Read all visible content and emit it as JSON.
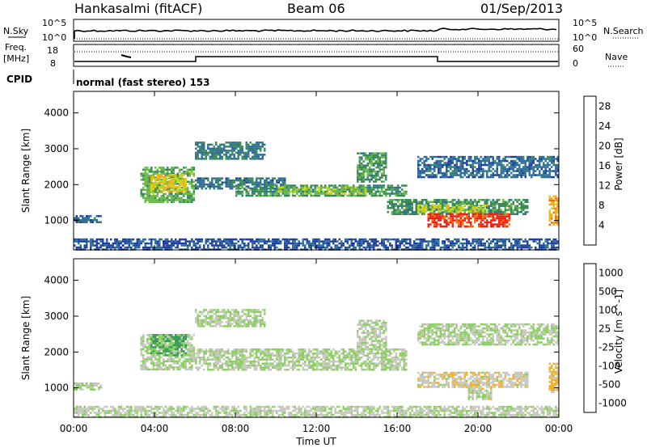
{
  "header": {
    "station": "Hankasalmi (fitACF)",
    "beam": "Beam 06",
    "date": "01/Sep/2013"
  },
  "status_panels": {
    "nsky_label": "N.Sky",
    "nsky_axis_top": "10^5",
    "nsky_axis_bottom": "10^0",
    "nsearch_axis_top": "10^5",
    "nsearch_axis_bottom": "10^0",
    "nsearch_label": "N.Search",
    "freq_label_1": "Freq.",
    "freq_label_2": "[MHz]",
    "freq_tick_high": "18",
    "freq_tick_low": "8",
    "nave_tick_high": "60",
    "nave_tick_low": "0",
    "nave_label": "Nave",
    "cpid_label": "CPID",
    "cpid_text": "normal (fast stereo) 153"
  },
  "chart_data": [
    {
      "type": "heatmap",
      "title": "",
      "ylabel": "Slant Range [km]",
      "ylim": [
        180,
        4600
      ],
      "yticks": [
        "1000",
        "2000",
        "3000",
        "4000"
      ],
      "xlim": [
        0,
        24
      ],
      "colorbar": {
        "label": "Power [dB]",
        "range": [
          0,
          30
        ],
        "ticks": [
          "4",
          "8",
          "12",
          "16",
          "20",
          "24",
          "28"
        ],
        "colors": [
          "#0000ee",
          "#1c3fa0",
          "#2e6e9a",
          "#3a8a5a",
          "#6ab84a",
          "#c8d820",
          "#f0b018",
          "#f07010",
          "#ee2010"
        ]
      },
      "echo_regions": [
        {
          "x": [
            0.0,
            1.4
          ],
          "y": [
            950,
            1150
          ],
          "value": 8
        },
        {
          "x": [
            0.0,
            24.0
          ],
          "y": [
            200,
            500
          ],
          "value": 6
        },
        {
          "x": [
            3.3,
            6.0
          ],
          "y": [
            1500,
            2500
          ],
          "value": 14
        },
        {
          "x": [
            3.8,
            5.6
          ],
          "y": [
            1800,
            2300
          ],
          "value": 20
        },
        {
          "x": [
            6.0,
            9.5
          ],
          "y": [
            2700,
            3200
          ],
          "value": 10
        },
        {
          "x": [
            6.0,
            10.5
          ],
          "y": [
            1900,
            2200
          ],
          "value": 9
        },
        {
          "x": [
            8.0,
            16.5
          ],
          "y": [
            1700,
            2000
          ],
          "value": 12
        },
        {
          "x": [
            10.0,
            14.5
          ],
          "y": [
            1750,
            1950
          ],
          "value": 16
        },
        {
          "x": [
            14.0,
            15.5
          ],
          "y": [
            2100,
            2900
          ],
          "value": 12
        },
        {
          "x": [
            15.5,
            22.5
          ],
          "y": [
            1200,
            1600
          ],
          "value": 12
        },
        {
          "x": [
            17.0,
            20.5
          ],
          "y": [
            1250,
            1450
          ],
          "value": 18
        },
        {
          "x": [
            17.5,
            21.6
          ],
          "y": [
            850,
            1200
          ],
          "value": 28
        },
        {
          "x": [
            17.0,
            24.0
          ],
          "y": [
            2200,
            2800
          ],
          "value": 8
        },
        {
          "x": [
            23.5,
            24.0
          ],
          "y": [
            900,
            1700
          ],
          "value": 22
        }
      ]
    },
    {
      "type": "heatmap",
      "title": "",
      "ylabel": "Slant Range [km]",
      "xlabel": "Time UT",
      "ylim": [
        180,
        4600
      ],
      "yticks": [
        "1000",
        "2000",
        "3000",
        "4000"
      ],
      "xlim": [
        0,
        24
      ],
      "xticks": [
        "00:00",
        "04:00",
        "08:00",
        "12:00",
        "16:00",
        "20:00",
        "00:00"
      ],
      "colorbar": {
        "label": "Velocity [m s^-1]",
        "range": [
          -1000,
          1000
        ],
        "ticks": [
          "1000",
          "500",
          "100",
          "25",
          "-25",
          "-100",
          "-500",
          "-1000"
        ],
        "colors": [
          "#1a40b8",
          "#2e7ca0",
          "#3a9a5a",
          "#8ad060",
          "#c8c8c0",
          "#f0b020",
          "#f07010",
          "#ee1010"
        ]
      },
      "echo_regions": [
        {
          "x": [
            0.0,
            1.4
          ],
          "y": [
            950,
            1150
          ],
          "value": 0
        },
        {
          "x": [
            0.0,
            24.0
          ],
          "y": [
            200,
            500
          ],
          "value": 60
        },
        {
          "x": [
            3.3,
            6.0
          ],
          "y": [
            1500,
            2500
          ],
          "value": 0
        },
        {
          "x": [
            3.8,
            5.6
          ],
          "y": [
            1900,
            2500
          ],
          "value": -300
        },
        {
          "x": [
            6.0,
            9.5
          ],
          "y": [
            2700,
            3200
          ],
          "value": 0
        },
        {
          "x": [
            6.0,
            16.5
          ],
          "y": [
            1500,
            2100
          ],
          "value": 0
        },
        {
          "x": [
            14.0,
            15.5
          ],
          "y": [
            2100,
            2900
          ],
          "value": 50
        },
        {
          "x": [
            17.0,
            22.5
          ],
          "y": [
            1050,
            1450
          ],
          "value": 150
        },
        {
          "x": [
            19.5,
            20.7
          ],
          "y": [
            700,
            1000
          ],
          "value": 100
        },
        {
          "x": [
            17.0,
            24.0
          ],
          "y": [
            2200,
            2800
          ],
          "value": 0
        },
        {
          "x": [
            23.5,
            24.0
          ],
          "y": [
            900,
            1700
          ],
          "value": 300
        }
      ]
    }
  ]
}
